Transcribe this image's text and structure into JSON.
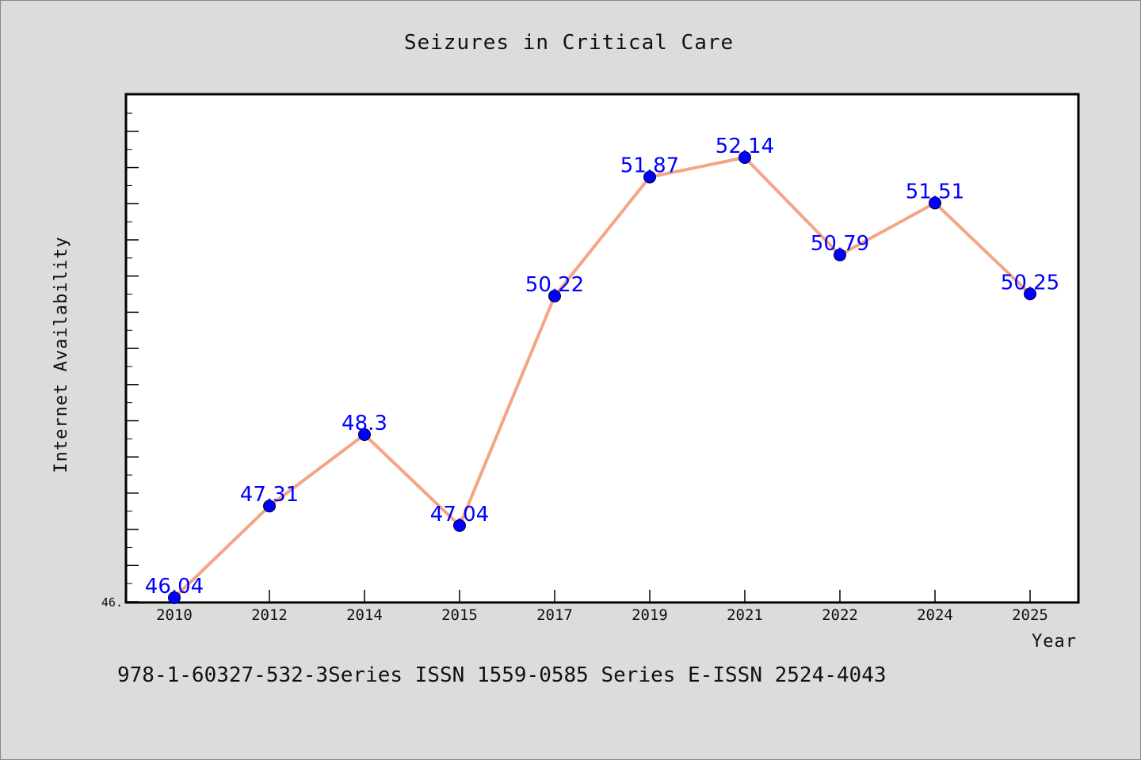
{
  "chart_data": {
    "type": "line",
    "title": "Seizures in Critical Care",
    "xlabel": "Year",
    "ylabel": "Internet Availability",
    "categories": [
      "2010",
      "2012",
      "2014",
      "2015",
      "2017",
      "2019",
      "2021",
      "2022",
      "2024",
      "2025"
    ],
    "series": [
      {
        "values": [
          46.04,
          47.31,
          48.3,
          47.04,
          50.22,
          51.87,
          52.14,
          50.79,
          51.51,
          50.25
        ],
        "labels": [
          "46.04",
          "47.31",
          "48.3",
          "47.04",
          "50.22",
          "51.87",
          "52.14",
          "50.79",
          "51.51",
          "50.25"
        ],
        "line_color": "#f4a582",
        "marker_color": "#0000ff"
      }
    ],
    "y_tick_label_visible": "46.",
    "ylim": [
      46.0,
      53.0
    ],
    "grid": false,
    "background": "#dcdcdc",
    "plot_background": "#ffffff"
  },
  "footer_text": "978-1-60327-532-3Series ISSN 1559-0585 Series E-ISSN 2524-4043"
}
